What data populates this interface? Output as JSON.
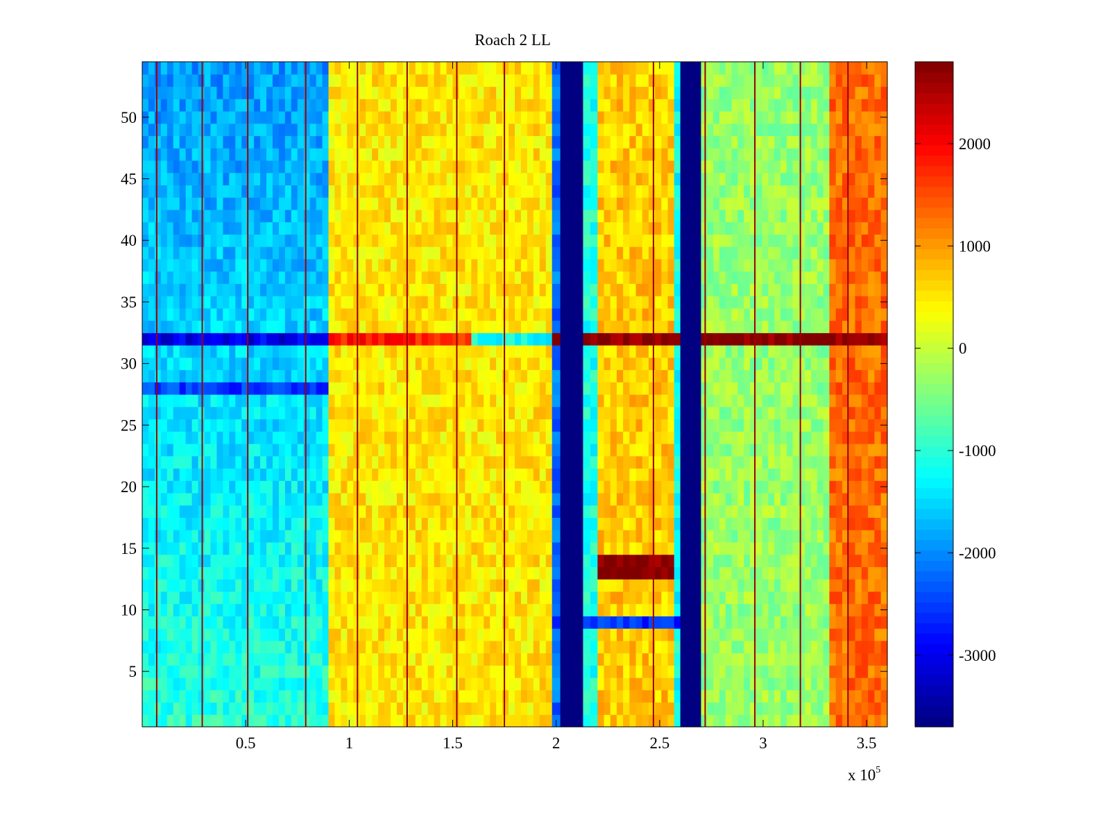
{
  "chart_data": {
    "type": "heatmap",
    "title": "Roach 2 LL",
    "xlabel": "",
    "ylabel": "",
    "x_multiplier_label": {
      "base": "x 10",
      "exponent": "5"
    },
    "xlim": [
      0,
      360000
    ],
    "ylim": [
      0.5,
      54.5
    ],
    "x_ticks": [
      50000,
      100000,
      150000,
      200000,
      250000,
      300000,
      350000
    ],
    "x_tick_labels": [
      "0.5",
      "1",
      "1.5",
      "2",
      "2.5",
      "3",
      "3.5"
    ],
    "y_ticks": [
      5,
      10,
      15,
      20,
      25,
      30,
      35,
      40,
      45,
      50
    ],
    "y_tick_labels": [
      "5",
      "10",
      "15",
      "20",
      "25",
      "30",
      "35",
      "40",
      "45",
      "50"
    ],
    "colorbar": {
      "colormap": "jet",
      "range": [
        -3700,
        2800
      ],
      "ticks": [
        -3000,
        -2000,
        -1000,
        0,
        1000,
        2000
      ],
      "tick_labels": [
        "-3000",
        "-2000",
        "-1000",
        "0",
        "1000",
        "2000"
      ]
    },
    "rows": 54,
    "column_bands": [
      {
        "x_start": 0,
        "x_end": 90000,
        "value_low_rows": -1000,
        "value_high_rows": -1900
      },
      {
        "x_start": 90000,
        "x_end": 198000,
        "value": 500
      },
      {
        "x_start": 198000,
        "x_end": 202000,
        "value": -2200
      },
      {
        "x_start": 202000,
        "x_end": 213000,
        "value": -3700
      },
      {
        "x_start": 213000,
        "x_end": 220000,
        "value": -1100
      },
      {
        "x_start": 220000,
        "x_end": 257000,
        "value": 700
      },
      {
        "x_start": 257000,
        "x_end": 260000,
        "value": -1200
      },
      {
        "x_start": 260000,
        "x_end": 270000,
        "value": -3700
      },
      {
        "x_start": 270000,
        "x_end": 332000,
        "value": -300
      },
      {
        "x_start": 332000,
        "x_end": 360000,
        "value": 1300
      }
    ],
    "row_features": [
      {
        "row": 32,
        "note": "strong horizontal stripe",
        "value_left": -3000,
        "value_mid": 1800,
        "value_right": 2800
      },
      {
        "row": 28,
        "note": "dark blue stripe on left region",
        "value": -2500
      },
      {
        "rows": [
          13,
          14
        ],
        "x_range": [
          220000,
          257000
        ],
        "value": 2800
      },
      {
        "row": 9,
        "x_range": [
          198000,
          270000
        ],
        "value": -2600
      }
    ],
    "vertical_line_features_x": [
      7000,
      29000,
      51000,
      79000,
      104000,
      128000,
      152000,
      175000,
      247000,
      272000,
      296000,
      318000,
      341000
    ]
  }
}
